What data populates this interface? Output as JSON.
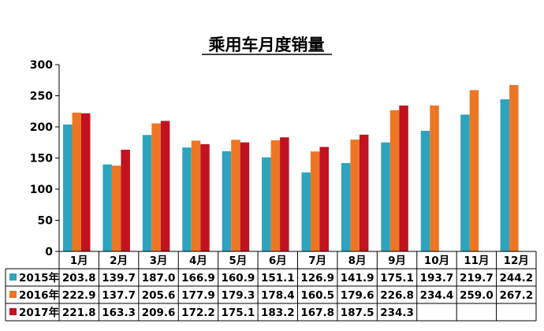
{
  "chart_data": {
    "type": "bar",
    "title": "乘用车月度销量",
    "xlabel": "",
    "ylabel": "",
    "ylim": [
      0,
      300
    ],
    "yticks": [
      "0",
      "50",
      "100",
      "150",
      "200",
      "250",
      "300"
    ],
    "grid": false,
    "legend": "data-table-rows",
    "categories": [
      "1月",
      "2月",
      "3月",
      "4月",
      "5月",
      "6月",
      "7月",
      "8月",
      "9月",
      "10月",
      "11月",
      "12月"
    ],
    "series": [
      {
        "name": "2015年",
        "color": "#2EA3BE",
        "values": [
          203.8,
          139.7,
          187.0,
          166.9,
          160.9,
          151.1,
          126.9,
          141.9,
          175.1,
          193.7,
          219.7,
          244.2
        ],
        "labels": [
          "203.8",
          "139.7",
          "187.0",
          "166.9",
          "160.9",
          "151.1",
          "126.9",
          "141.9",
          "175.1",
          "193.7",
          "219.7",
          "244.2"
        ]
      },
      {
        "name": "2016年",
        "color": "#EC7624",
        "values": [
          222.9,
          137.7,
          205.6,
          177.9,
          179.3,
          178.4,
          160.5,
          179.6,
          226.8,
          234.4,
          259.0,
          267.2
        ],
        "labels": [
          "222.9",
          "137.7",
          "205.6",
          "177.9",
          "179.3",
          "178.4",
          "160.5",
          "179.6",
          "226.8",
          "234.4",
          "259.0",
          "267.2"
        ]
      },
      {
        "name": "2017年",
        "color": "#C1121F",
        "values": [
          221.8,
          163.3,
          209.6,
          172.2,
          175.1,
          183.2,
          167.8,
          187.5,
          234.3,
          null,
          null,
          null
        ],
        "labels": [
          "221.8",
          "163.3",
          "209.6",
          "172.2",
          "175.1",
          "183.2",
          "167.8",
          "187.5",
          "234.3",
          "",
          "",
          ""
        ]
      }
    ]
  }
}
